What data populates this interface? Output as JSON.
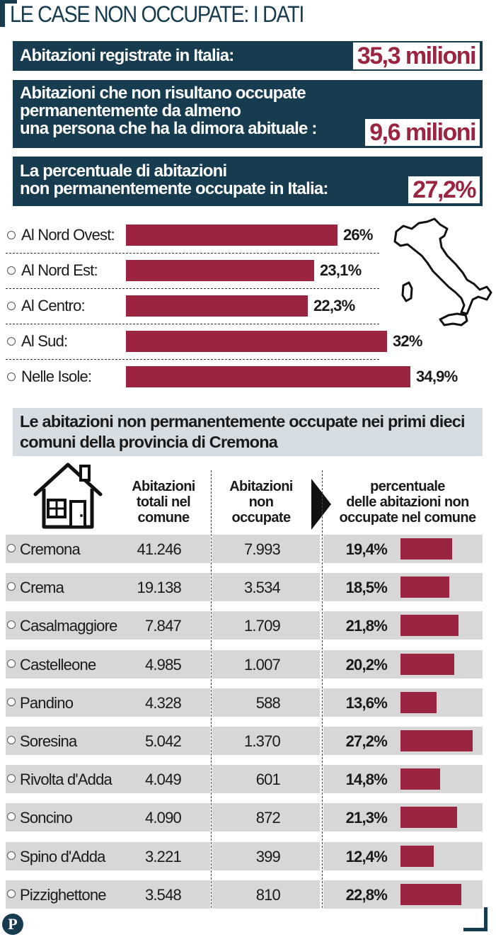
{
  "header": {
    "title": "LE CASE NON OCCUPATE: I DATI"
  },
  "summary": [
    {
      "label": "Abitazioni registrate in Italia:",
      "value": "35,3 milioni"
    },
    {
      "label": "Abitazioni che non risultano occupate\npermanentemente da almeno\nuna persona che ha la dimora abituale :",
      "value": "9,6 milioni"
    },
    {
      "label": "La percentuale di abitazioni\nnon permanentemente occupate in Italia:",
      "value": "27,2%"
    }
  ],
  "colors": {
    "accent": "#9b2440",
    "navy": "#173c50",
    "row_bg": "#d7d7d7",
    "subheader_bg": "#d5dde2"
  },
  "chart_data": [
    {
      "type": "bar",
      "title": "",
      "categories": [
        "Al Nord Ovest:",
        "Al Nord Est:",
        "Al Centro:",
        "Al Sud:",
        "Nelle Isole:"
      ],
      "values": [
        26,
        23.1,
        22.3,
        32,
        34.9
      ],
      "value_labels": [
        "26%",
        "23,1%",
        "22,3%",
        "32%",
        "34,9%"
      ],
      "unit": "%",
      "orientation": "horizontal"
    },
    {
      "type": "table",
      "title": "Le abitazioni non permanentemente occupate nei primi dieci comuni della provincia di Cremona",
      "columns": [
        "Abitazioni totali nel comune",
        "Abitazioni non occupate",
        "percentuale delle abitazioni non occupate nel comune"
      ],
      "rows": [
        {
          "comune": "Cremona",
          "totali": "41.246",
          "non_occupate": "7.993",
          "percentuale": "19,4%",
          "pct_value": 19.4
        },
        {
          "comune": "Crema",
          "totali": "19.138",
          "non_occupate": "3.534",
          "percentuale": "18,5%",
          "pct_value": 18.5
        },
        {
          "comune": "Casalmaggiore",
          "totali": "7.847",
          "non_occupate": "1.709",
          "percentuale": "21,8%",
          "pct_value": 21.8
        },
        {
          "comune": "Castelleone",
          "totali": "4.985",
          "non_occupate": "1.007",
          "percentuale": "20,2%",
          "pct_value": 20.2
        },
        {
          "comune": "Pandino",
          "totali": "4.328",
          "non_occupate": "588",
          "percentuale": "13,6%",
          "pct_value": 13.6
        },
        {
          "comune": "Soresina",
          "totali": "5.042",
          "non_occupate": "1.370",
          "percentuale": "27,2%",
          "pct_value": 27.2
        },
        {
          "comune": "Rivolta d'Adda",
          "totali": "4.049",
          "non_occupate": "601",
          "percentuale": "14,8%",
          "pct_value": 14.8
        },
        {
          "comune": "Soncino",
          "totali": "4.090",
          "non_occupate": "872",
          "percentuale": "21,3%",
          "pct_value": 21.3
        },
        {
          "comune": "Spino d'Adda",
          "totali": "3.221",
          "non_occupate": "399",
          "percentuale": "12,4%",
          "pct_value": 12.4
        },
        {
          "comune": "Pizzighettone",
          "totali": "3.548",
          "non_occupate": "810",
          "percentuale": "22,8%",
          "pct_value": 22.8
        }
      ]
    }
  ],
  "table_headers": {
    "col1": "Abitazioni\ntotali nel\ncomune",
    "col2": "Abitazioni\nnon\noccupate",
    "col3": "percentuale\ndelle abitazioni non\noccupate nel comune"
  },
  "icons": {
    "house": "house-icon",
    "map": "italy-map-icon",
    "arrow": "arrow-right-icon",
    "logo": "p-logo-icon"
  },
  "logo": {
    "letter": "P"
  }
}
